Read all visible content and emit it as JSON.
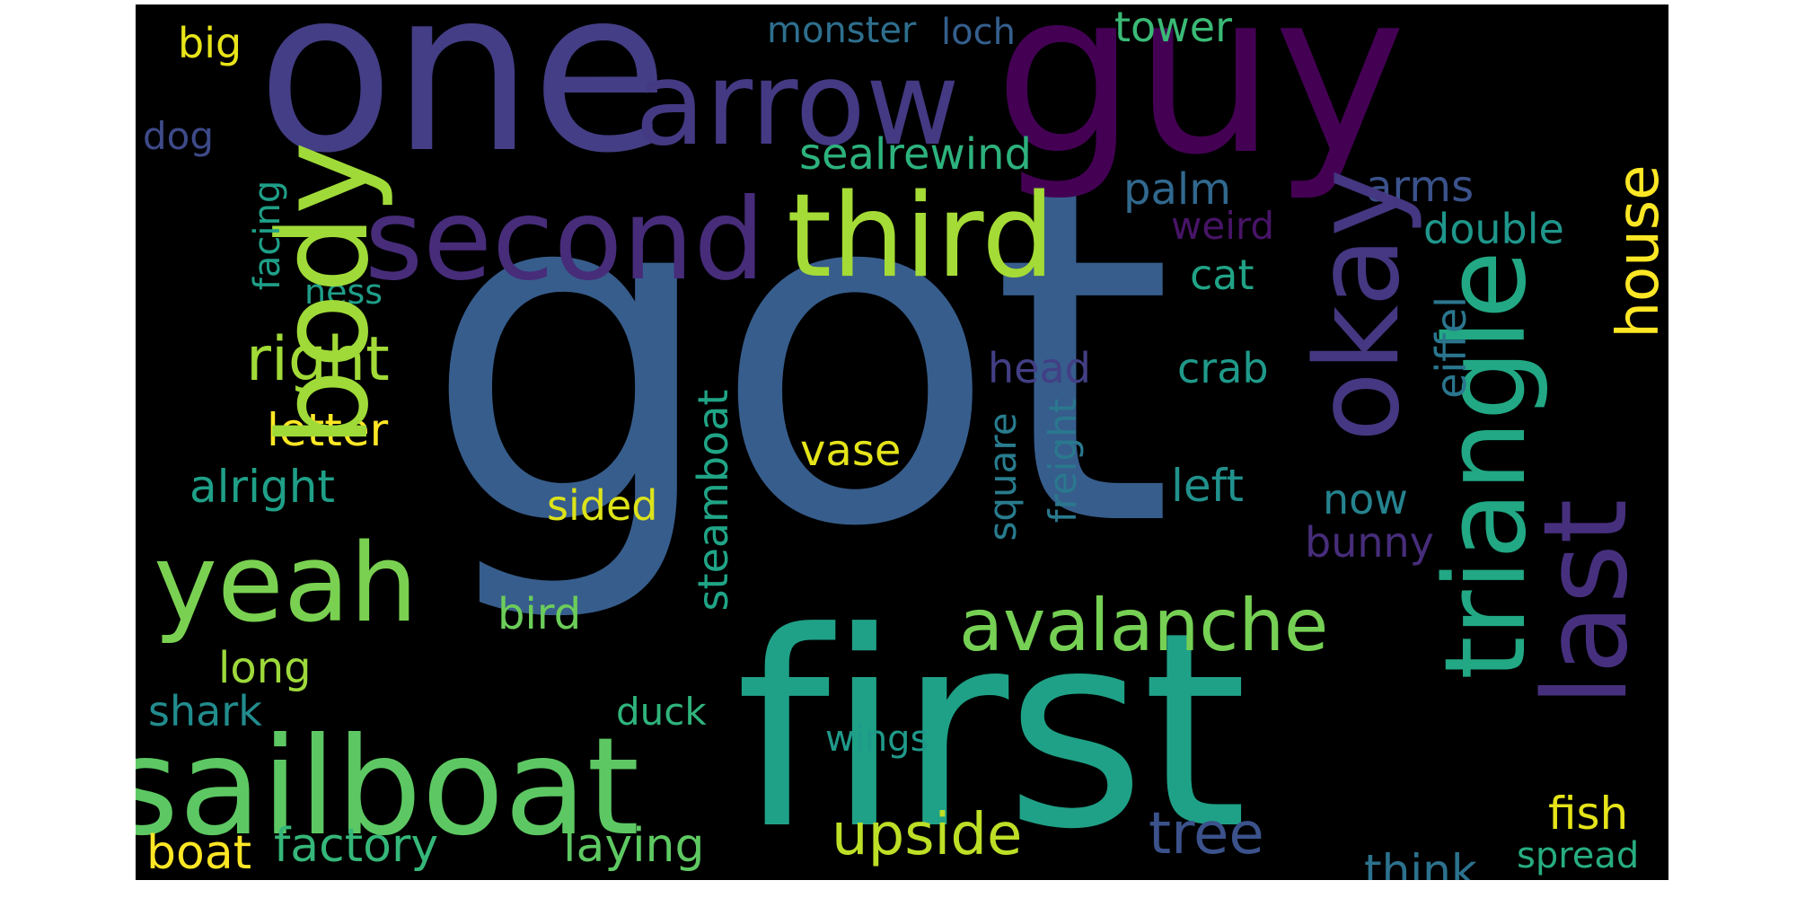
{
  "canvas": {
    "background": "#000000"
  },
  "words": [
    {
      "text": "got",
      "color": "#375d8c"
    },
    {
      "text": "first",
      "color": "#1fa187"
    },
    {
      "text": "one",
      "color": "#433e85"
    },
    {
      "text": "guy",
      "color": "#440154"
    },
    {
      "text": "arrow",
      "color": "#443983"
    },
    {
      "text": "sailboat",
      "color": "#5dc863"
    },
    {
      "text": "second",
      "color": "#472c7a"
    },
    {
      "text": "third",
      "color": "#a5db36"
    },
    {
      "text": "yeah",
      "color": "#7ad151"
    },
    {
      "text": "body",
      "color": "#a0da39"
    },
    {
      "text": "okay",
      "color": "#453781"
    },
    {
      "text": "triangle",
      "color": "#22a884"
    },
    {
      "text": "last",
      "color": "#46307e"
    },
    {
      "text": "avalanche",
      "color": "#75d054"
    },
    {
      "text": "upside",
      "color": "#bddf26"
    },
    {
      "text": "tree",
      "color": "#3b528b"
    },
    {
      "text": "right",
      "color": "#a2da37"
    },
    {
      "text": "house",
      "color": "#fde725"
    },
    {
      "text": "factory",
      "color": "#35b779"
    },
    {
      "text": "laying",
      "color": "#5ec962"
    },
    {
      "text": "boat",
      "color": "#fde725"
    },
    {
      "text": "think",
      "color": "#2c728e"
    },
    {
      "text": "spread",
      "color": "#27ad81"
    },
    {
      "text": "fish",
      "color": "#e5e419"
    },
    {
      "text": "letter",
      "color": "#fde725"
    },
    {
      "text": "alright",
      "color": "#1fa088"
    },
    {
      "text": "sealrewind",
      "color": "#2db27d"
    },
    {
      "text": "palm",
      "color": "#31688e"
    },
    {
      "text": "arms",
      "color": "#3b528b"
    },
    {
      "text": "double",
      "color": "#1f968b"
    },
    {
      "text": "weird",
      "color": "#481467"
    },
    {
      "text": "cat",
      "color": "#20a386"
    },
    {
      "text": "crab",
      "color": "#1f9a8a"
    },
    {
      "text": "head",
      "color": "#423f85"
    },
    {
      "text": "vase",
      "color": "#e5e419"
    },
    {
      "text": "left",
      "color": "#21918c"
    },
    {
      "text": "now",
      "color": "#25838e"
    },
    {
      "text": "bunny",
      "color": "#472d7b"
    },
    {
      "text": "sided",
      "color": "#dde318"
    },
    {
      "text": "bird",
      "color": "#6ccd5a"
    },
    {
      "text": "long",
      "color": "#9dd93b"
    },
    {
      "text": "shark",
      "color": "#228c8d"
    },
    {
      "text": "duck",
      "color": "#2fb47c"
    },
    {
      "text": "wings",
      "color": "#1f998a"
    },
    {
      "text": "big",
      "color": "#e7e419"
    },
    {
      "text": "dog",
      "color": "#3e4a89"
    },
    {
      "text": "monster",
      "color": "#2e6f8e"
    },
    {
      "text": "loch",
      "color": "#355f8d"
    },
    {
      "text": "tower",
      "color": "#3aba76"
    },
    {
      "text": "ness",
      "color": "#1f9e89"
    },
    {
      "text": "facing",
      "color": "#1f9f88"
    },
    {
      "text": "steamboat",
      "color": "#20a486"
    },
    {
      "text": "square",
      "color": "#287c8e"
    },
    {
      "text": "freight",
      "color": "#2a788e"
    },
    {
      "text": "eiffel",
      "color": "#2a768e"
    }
  ]
}
